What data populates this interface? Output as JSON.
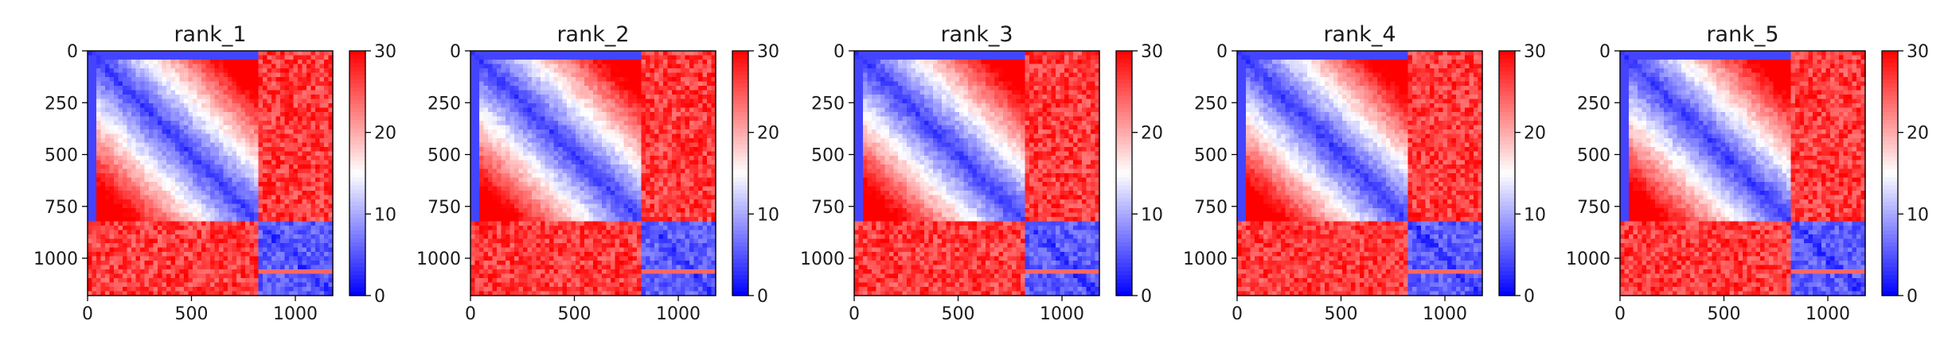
{
  "figure": {
    "background": "#ffffff"
  },
  "chart_data": [
    {
      "type": "heatmap",
      "title": "rank_1",
      "xlabel": "",
      "ylabel": "",
      "xlim": [
        0,
        1180
      ],
      "ylim": [
        1180,
        0
      ],
      "xticks": [
        0,
        500,
        1000
      ],
      "yticks": [
        0,
        250,
        500,
        750,
        1000
      ],
      "colorbar": {
        "min": 0,
        "max": 30,
        "ticks": [
          0,
          10,
          20,
          30
        ],
        "colormap": "bwr"
      },
      "block_boundary": 830,
      "grid": false,
      "variant": 0
    },
    {
      "type": "heatmap",
      "title": "rank_2",
      "xlabel": "",
      "ylabel": "",
      "xlim": [
        0,
        1180
      ],
      "ylim": [
        1180,
        0
      ],
      "xticks": [
        0,
        500,
        1000
      ],
      "yticks": [
        0,
        250,
        500,
        750,
        1000
      ],
      "colorbar": {
        "min": 0,
        "max": 30,
        "ticks": [
          0,
          10,
          20,
          30
        ],
        "colormap": "bwr"
      },
      "block_boundary": 830,
      "grid": false,
      "variant": 1
    },
    {
      "type": "heatmap",
      "title": "rank_3",
      "xlabel": "",
      "ylabel": "",
      "xlim": [
        0,
        1180
      ],
      "ylim": [
        1180,
        0
      ],
      "xticks": [
        0,
        500,
        1000
      ],
      "yticks": [
        0,
        250,
        500,
        750,
        1000
      ],
      "colorbar": {
        "min": 0,
        "max": 30,
        "ticks": [
          0,
          10,
          20,
          30
        ],
        "colormap": "bwr"
      },
      "block_boundary": 830,
      "grid": false,
      "variant": 2
    },
    {
      "type": "heatmap",
      "title": "rank_4",
      "xlabel": "",
      "ylabel": "",
      "xlim": [
        0,
        1180
      ],
      "ylim": [
        1180,
        0
      ],
      "xticks": [
        0,
        500,
        1000
      ],
      "yticks": [
        0,
        250,
        500,
        750,
        1000
      ],
      "colorbar": {
        "min": 0,
        "max": 30,
        "ticks": [
          0,
          10,
          20,
          30
        ],
        "colormap": "bwr"
      },
      "block_boundary": 830,
      "grid": false,
      "variant": 3
    },
    {
      "type": "heatmap",
      "title": "rank_5",
      "xlabel": "",
      "ylabel": "",
      "xlim": [
        0,
        1180
      ],
      "ylim": [
        1180,
        0
      ],
      "xticks": [
        0,
        500,
        1000
      ],
      "yticks": [
        0,
        250,
        500,
        750,
        1000
      ],
      "colorbar": {
        "min": 0,
        "max": 30,
        "ticks": [
          0,
          10,
          20,
          30
        ],
        "colormap": "bwr"
      },
      "block_boundary": 830,
      "grid": false,
      "variant": 4
    }
  ]
}
